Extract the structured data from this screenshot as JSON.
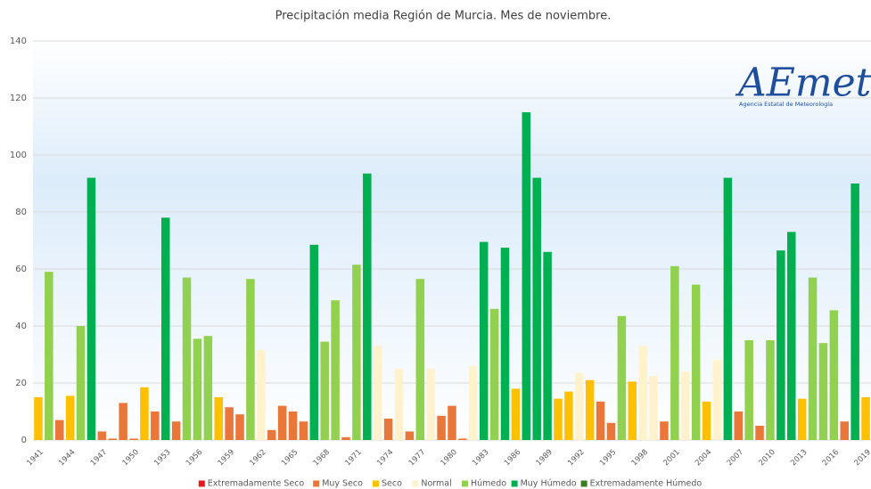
{
  "chart_data": {
    "type": "bar",
    "title": "Precipitación media Región de Murcia. Mes de noviembre.",
    "logo": {
      "text": "AEmet",
      "subtitle": "Agencia Estatal de Meteorología"
    },
    "categories": [
      1941,
      null,
      null,
      1944,
      null,
      null,
      1947,
      null,
      null,
      1950,
      null,
      null,
      1953,
      null,
      null,
      1956,
      null,
      null,
      1959,
      null,
      null,
      1962,
      null,
      null,
      1965,
      null,
      null,
      1968,
      null,
      null,
      1971,
      null,
      null,
      1974,
      null,
      null,
      1977,
      null,
      null,
      1980,
      null,
      null,
      1983,
      null,
      null,
      1986,
      null,
      null,
      1989,
      null,
      null,
      1992,
      null,
      null,
      1995,
      null,
      null,
      1998,
      null,
      null,
      2001,
      null,
      null,
      2004,
      null,
      null,
      2007,
      null,
      null,
      2010,
      null,
      null,
      2013,
      null,
      null,
      2016,
      null,
      null,
      2019
    ],
    "series": [
      {
        "name": "Extremadamente Seco",
        "color": "#e31a1c",
        "values": [
          null,
          null,
          null,
          null,
          null,
          null,
          null,
          null,
          null,
          null,
          null,
          null,
          null,
          null,
          null,
          null,
          null,
          null,
          null,
          null,
          null,
          null,
          null,
          null,
          null,
          null,
          null,
          null,
          null,
          null,
          null,
          null,
          null,
          null,
          null,
          null,
          null,
          null,
          null,
          null,
          null,
          null,
          null,
          null,
          null,
          null,
          null,
          null,
          null,
          null,
          null,
          null,
          null,
          null,
          null,
          null,
          null,
          null,
          null,
          null,
          null,
          null,
          null,
          null,
          null,
          null,
          null,
          null,
          null,
          null,
          null,
          null,
          null,
          null,
          null,
          null,
          null,
          null,
          null
        ]
      },
      {
        "name": "Muy Seco",
        "color": "#e9773a",
        "values": [
          null,
          null,
          7,
          null,
          null,
          null,
          3,
          0.5,
          13,
          0.5,
          null,
          10,
          null,
          6.5,
          null,
          null,
          null,
          null,
          11.5,
          9,
          null,
          null,
          3.5,
          12,
          10,
          6.5,
          null,
          null,
          null,
          1,
          null,
          null,
          null,
          7.5,
          null,
          3,
          null,
          null,
          8.5,
          12,
          0.5,
          null,
          null,
          null,
          null,
          null,
          null,
          null,
          null,
          null,
          null,
          null,
          null,
          13.5,
          6,
          null,
          null,
          null,
          null,
          6.5,
          null,
          null,
          null,
          null,
          null,
          null,
          10,
          null,
          5,
          null,
          null,
          null,
          null,
          null,
          null,
          null,
          6.5,
          null,
          null
        ]
      },
      {
        "name": "Seco",
        "color": "#ffc000",
        "values": [
          15,
          null,
          null,
          15.5,
          null,
          null,
          null,
          null,
          null,
          null,
          18.5,
          null,
          null,
          null,
          null,
          null,
          null,
          15,
          null,
          null,
          null,
          null,
          null,
          null,
          null,
          null,
          null,
          null,
          null,
          null,
          null,
          null,
          null,
          null,
          null,
          null,
          null,
          null,
          null,
          null,
          null,
          null,
          null,
          null,
          null,
          18,
          null,
          null,
          null,
          14.5,
          17,
          null,
          21,
          null,
          null,
          null,
          20.5,
          null,
          null,
          null,
          null,
          null,
          null,
          13.5,
          null,
          null,
          null,
          null,
          null,
          null,
          null,
          null,
          14.5,
          null,
          null,
          null,
          null,
          null,
          15
        ]
      },
      {
        "name": "Normal",
        "color": "#fff2cc",
        "values": [
          null,
          null,
          null,
          null,
          null,
          null,
          null,
          null,
          null,
          null,
          null,
          null,
          null,
          null,
          null,
          null,
          null,
          null,
          null,
          null,
          null,
          31.5,
          null,
          null,
          null,
          null,
          null,
          null,
          null,
          null,
          null,
          null,
          33,
          null,
          25,
          null,
          null,
          25,
          null,
          null,
          null,
          26,
          null,
          null,
          null,
          null,
          null,
          null,
          null,
          null,
          null,
          23.5,
          null,
          null,
          null,
          null,
          null,
          33,
          22.5,
          null,
          null,
          24,
          null,
          null,
          28,
          null,
          null,
          null,
          null,
          null,
          null,
          null,
          null,
          null,
          null,
          null,
          null,
          null,
          null
        ]
      },
      {
        "name": "Húmedo",
        "color": "#92d050",
        "values": [
          null,
          59,
          null,
          null,
          40,
          null,
          null,
          null,
          null,
          null,
          null,
          null,
          null,
          null,
          57,
          35.5,
          36.5,
          null,
          null,
          null,
          56.5,
          null,
          null,
          null,
          null,
          null,
          null,
          34.5,
          49,
          null,
          61.5,
          null,
          null,
          null,
          null,
          null,
          56.5,
          null,
          null,
          null,
          null,
          null,
          null,
          46,
          null,
          null,
          null,
          null,
          null,
          null,
          null,
          null,
          null,
          null,
          null,
          43.5,
          null,
          null,
          null,
          null,
          61,
          null,
          54.5,
          null,
          null,
          null,
          null,
          35,
          null,
          35,
          null,
          null,
          null,
          57,
          34,
          45.5,
          null,
          null,
          null
        ]
      },
      {
        "name": "Muy Húmedo",
        "color": "#00b050",
        "values": [
          null,
          null,
          null,
          null,
          null,
          92,
          null,
          null,
          null,
          null,
          null,
          null,
          78,
          null,
          null,
          null,
          null,
          null,
          null,
          null,
          null,
          null,
          null,
          null,
          null,
          null,
          68.5,
          null,
          null,
          null,
          null,
          93.5,
          null,
          null,
          null,
          null,
          null,
          null,
          null,
          null,
          null,
          null,
          69.5,
          null,
          67.5,
          null,
          115,
          92,
          66,
          null,
          null,
          null,
          null,
          null,
          null,
          null,
          null,
          null,
          null,
          null,
          null,
          null,
          null,
          null,
          null,
          92,
          null,
          null,
          null,
          null,
          66.5,
          73,
          null,
          null,
          null,
          null,
          null,
          90,
          null
        ]
      },
      {
        "name": "Extremadamente Húmedo",
        "color": "#3a7d22",
        "values": [
          null,
          null,
          null,
          null,
          null,
          null,
          null,
          null,
          null,
          null,
          null,
          null,
          null,
          null,
          null,
          null,
          null,
          null,
          null,
          null,
          null,
          null,
          null,
          null,
          null,
          null,
          null,
          null,
          null,
          null,
          null,
          null,
          null,
          null,
          null,
          null,
          null,
          null,
          null,
          null,
          null,
          null,
          null,
          null,
          null,
          null,
          null,
          null,
          null,
          null,
          null,
          null,
          null,
          null,
          null,
          null,
          null,
          null,
          null,
          null,
          null,
          null,
          null,
          null,
          null,
          null,
          null,
          null,
          null,
          null,
          null,
          null,
          null,
          null,
          null,
          null,
          null,
          null,
          null
        ]
      }
    ],
    "ylim": [
      0,
      140
    ],
    "yticks": [
      0,
      20,
      40,
      60,
      80,
      100,
      120,
      140
    ],
    "grid": true,
    "legend": "bottom"
  }
}
